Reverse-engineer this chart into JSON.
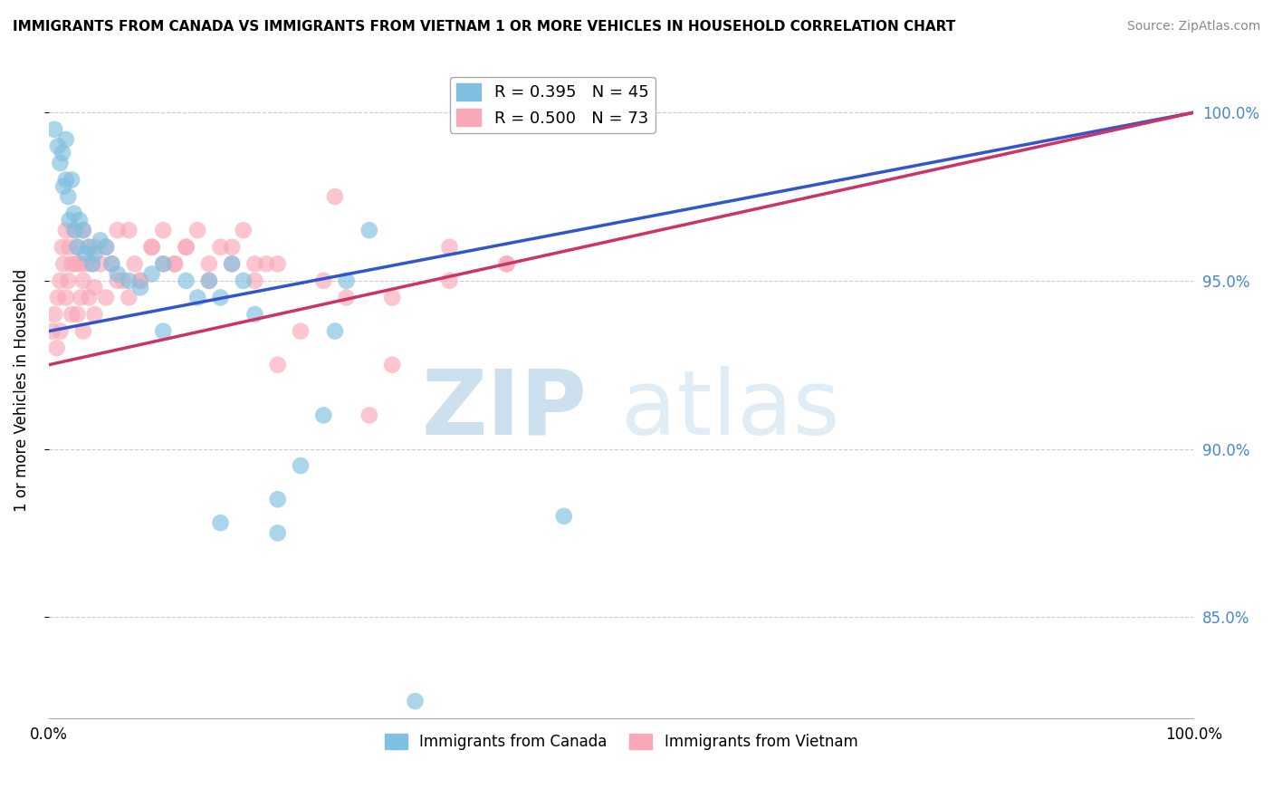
{
  "title": "IMMIGRANTS FROM CANADA VS IMMIGRANTS FROM VIETNAM 1 OR MORE VEHICLES IN HOUSEHOLD CORRELATION CHART",
  "source": "Source: ZipAtlas.com",
  "ylabel": "1 or more Vehicles in Household",
  "xlim": [
    0,
    100
  ],
  "ylim": [
    82.0,
    101.5
  ],
  "yticks": [
    85.0,
    90.0,
    95.0,
    100.0
  ],
  "ytick_labels": [
    "85.0%",
    "90.0%",
    "95.0%",
    "100.0%"
  ],
  "xtick_labels": [
    "0.0%",
    "100.0%"
  ],
  "legend_blue": "R = 0.395   N = 45",
  "legend_pink": "R = 0.500   N = 73",
  "blue_color": "#7fbfdf",
  "pink_color": "#f9a8b8",
  "blue_line_color": "#3355cc",
  "pink_line_color": "#cc3366",
  "watermark_zip": "ZIP",
  "watermark_atlas": "atlas",
  "blue_trend_x0": 0,
  "blue_trend_y0": 93.5,
  "blue_trend_x1": 100,
  "blue_trend_y1": 100.0,
  "pink_trend_x0": 0,
  "pink_trend_y0": 92.5,
  "pink_trend_x1": 100,
  "pink_trend_y1": 100.0,
  "canada_x": [
    0.5,
    0.8,
    1.0,
    1.2,
    1.3,
    1.5,
    1.5,
    1.7,
    1.8,
    2.0,
    2.2,
    2.3,
    2.5,
    2.7,
    3.0,
    3.2,
    3.5,
    3.8,
    4.0,
    4.5,
    5.0,
    5.5,
    6.0,
    7.0,
    8.0,
    9.0,
    10.0,
    12.0,
    13.0,
    14.0,
    15.0,
    16.0,
    17.0,
    18.0,
    20.0,
    22.0,
    24.0,
    25.0,
    26.0,
    28.0,
    32.0,
    45.0,
    10.0,
    15.0,
    20.0
  ],
  "canada_y": [
    99.5,
    99.0,
    98.5,
    98.8,
    97.8,
    99.2,
    98.0,
    97.5,
    96.8,
    98.0,
    97.0,
    96.5,
    96.0,
    96.8,
    96.5,
    95.8,
    96.0,
    95.5,
    95.8,
    96.2,
    96.0,
    95.5,
    95.2,
    95.0,
    94.8,
    95.2,
    95.5,
    95.0,
    94.5,
    95.0,
    94.5,
    95.5,
    95.0,
    94.0,
    88.5,
    89.5,
    91.0,
    93.5,
    95.0,
    96.5,
    82.5,
    88.0,
    93.5,
    87.8,
    87.5
  ],
  "vietnam_x": [
    0.3,
    0.5,
    0.7,
    0.8,
    1.0,
    1.0,
    1.2,
    1.3,
    1.5,
    1.5,
    1.7,
    1.8,
    2.0,
    2.0,
    2.2,
    2.3,
    2.5,
    2.5,
    2.7,
    2.8,
    3.0,
    3.0,
    3.2,
    3.5,
    3.5,
    3.8,
    4.0,
    4.0,
    4.5,
    5.0,
    5.5,
    6.0,
    6.5,
    7.0,
    7.5,
    8.0,
    9.0,
    10.0,
    11.0,
    12.0,
    13.0,
    14.0,
    15.0,
    16.0,
    17.0,
    18.0,
    19.0,
    20.0,
    22.0,
    24.0,
    26.0,
    28.0,
    30.0,
    35.0,
    40.0,
    3.0,
    4.0,
    5.0,
    6.0,
    7.0,
    8.0,
    9.0,
    10.0,
    11.0,
    12.0,
    14.0,
    16.0,
    18.0,
    20.0,
    25.0,
    30.0,
    35.0,
    40.0
  ],
  "vietnam_y": [
    93.5,
    94.0,
    93.0,
    94.5,
    95.0,
    93.5,
    96.0,
    95.5,
    94.5,
    96.5,
    95.0,
    96.0,
    95.5,
    94.0,
    96.5,
    95.5,
    94.0,
    96.0,
    95.5,
    94.5,
    96.5,
    95.0,
    95.5,
    96.0,
    94.5,
    95.5,
    96.0,
    94.8,
    95.5,
    96.0,
    95.5,
    96.5,
    95.0,
    96.5,
    95.5,
    95.0,
    96.0,
    96.5,
    95.5,
    96.0,
    96.5,
    95.0,
    96.0,
    95.5,
    96.5,
    95.0,
    95.5,
    92.5,
    93.5,
    95.0,
    94.5,
    91.0,
    92.5,
    95.0,
    95.5,
    93.5,
    94.0,
    94.5,
    95.0,
    94.5,
    95.0,
    96.0,
    95.5,
    95.5,
    96.0,
    95.5,
    96.0,
    95.5,
    95.5,
    97.5,
    94.5,
    96.0,
    95.5
  ]
}
